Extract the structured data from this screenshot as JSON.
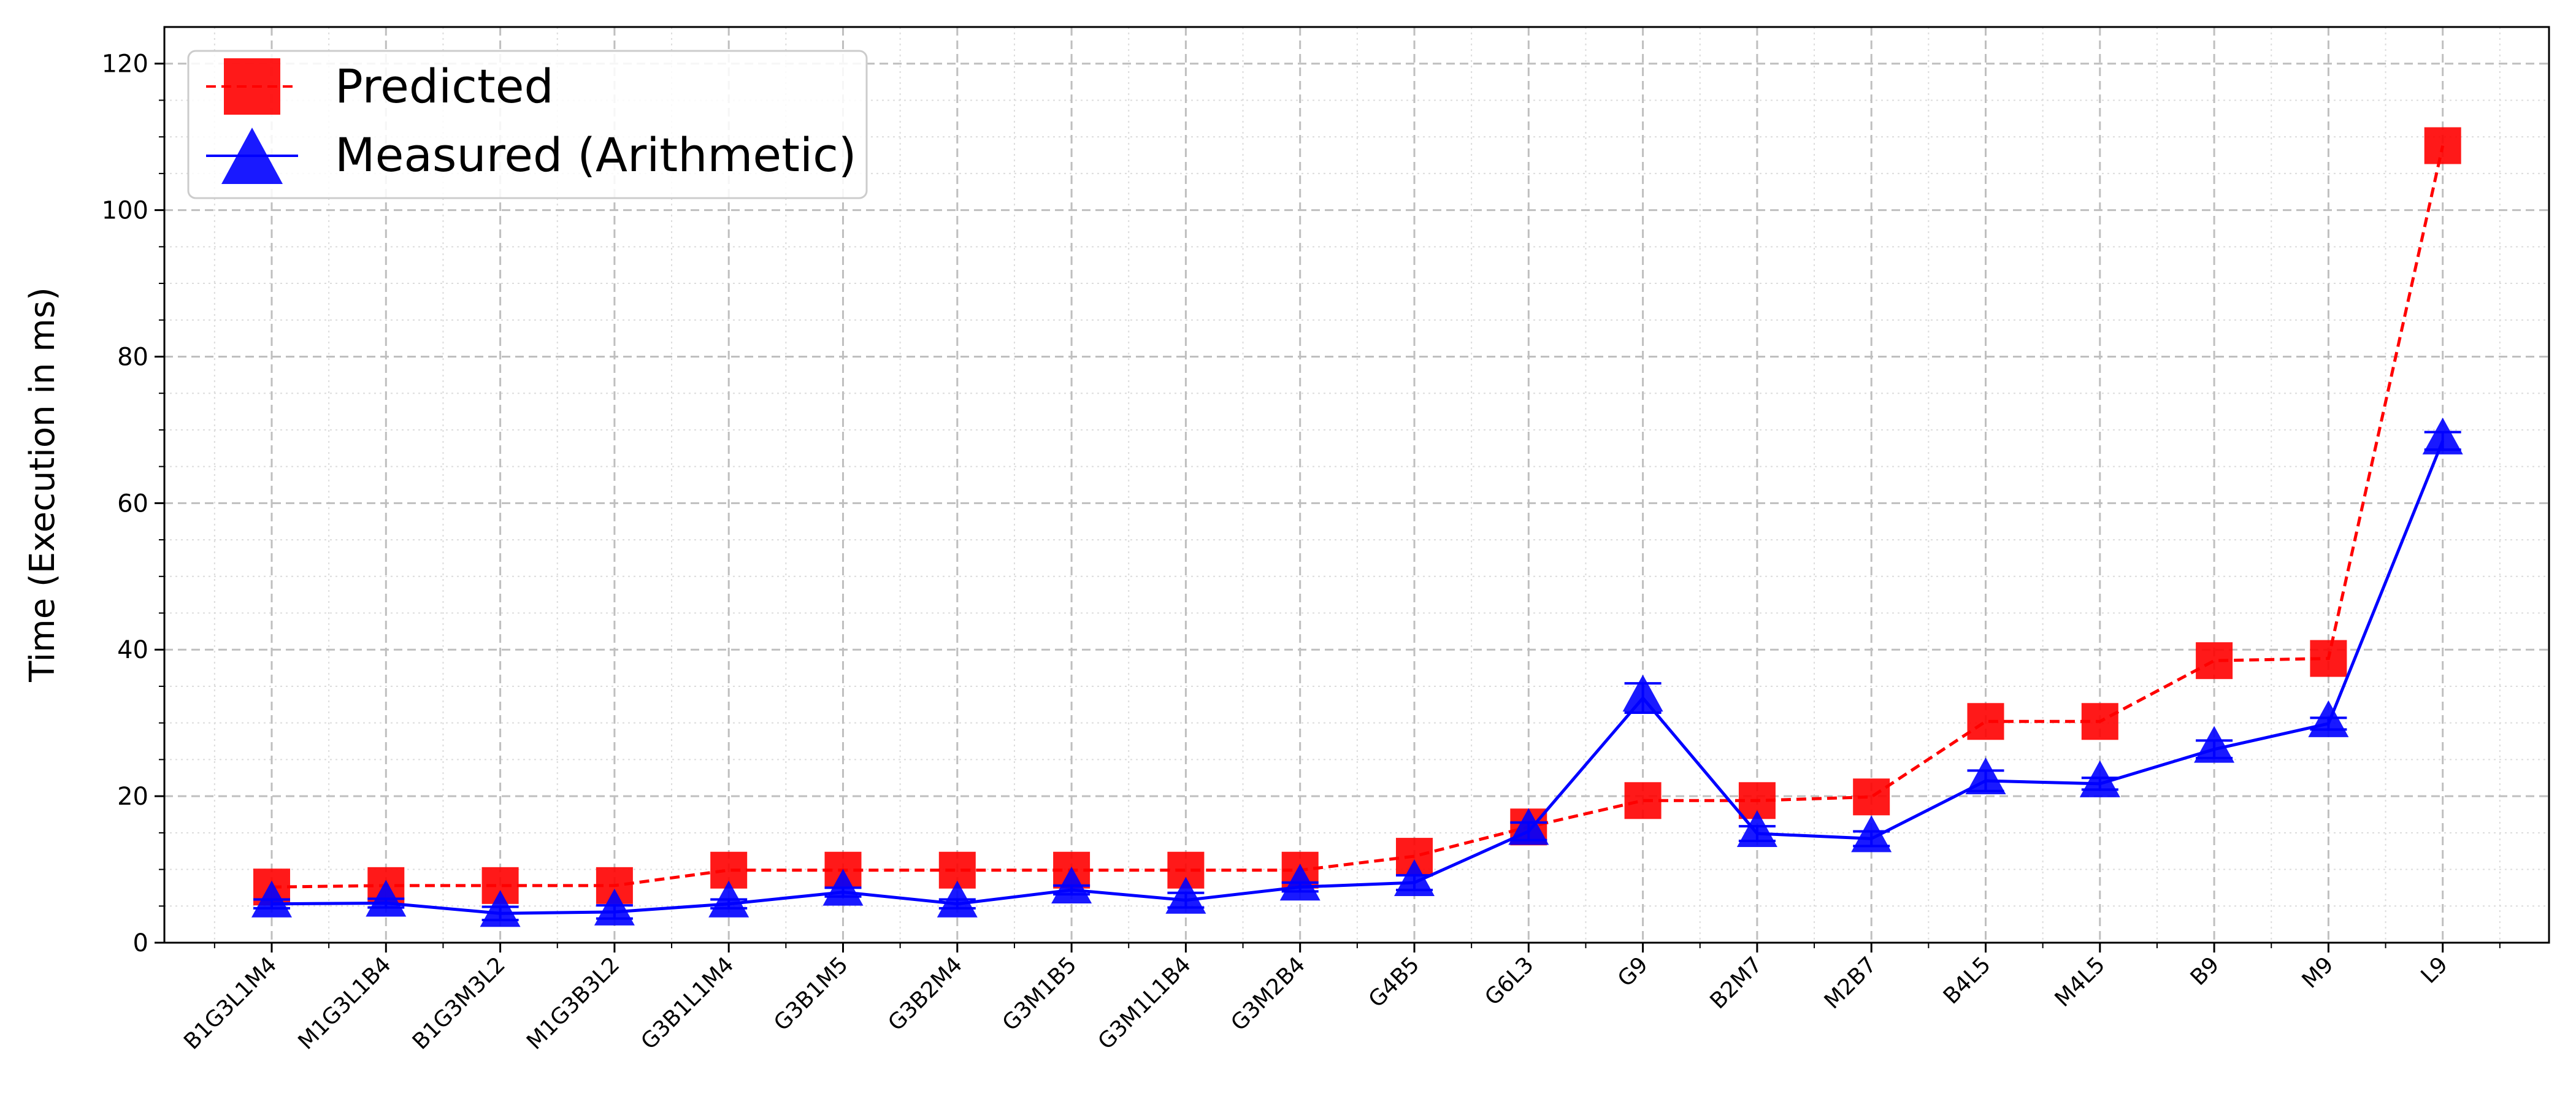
{
  "chart_data": {
    "type": "line",
    "title": "",
    "xlabel": "",
    "ylabel": "Time (Execution in ms)",
    "ylim": [
      0,
      125
    ],
    "yticks": [
      0,
      20,
      40,
      60,
      80,
      100,
      120
    ],
    "grid": true,
    "legend_position": "top-left",
    "categories": [
      "B1G3L1M4",
      "M1G3L1B4",
      "B1G3M3L2",
      "M1G3B3L2",
      "G3B1L1M4",
      "G3B1M5",
      "G3B2M4",
      "G3M1B5",
      "G3M1L1B4",
      "G3M2B4",
      "G4B5",
      "G6L3",
      "G9",
      "B2M7",
      "M2B7",
      "B4L5",
      "M4L5",
      "B9",
      "M9",
      "L9"
    ],
    "series": [
      {
        "name": "Predicted",
        "color": "#ff0000",
        "line_style": "dashed",
        "marker": "square",
        "values": [
          7.6,
          7.8,
          7.8,
          7.8,
          9.9,
          9.9,
          9.9,
          9.9,
          9.9,
          9.9,
          11.8,
          15.8,
          19.4,
          19.4,
          19.9,
          30.2,
          30.2,
          38.5,
          38.8,
          108.8
        ]
      },
      {
        "name": "Measured (Arithmetic)",
        "color": "#0000ff",
        "line_style": "solid",
        "marker": "triangle",
        "values": [
          5.3,
          5.4,
          4.0,
          4.2,
          5.3,
          6.9,
          5.3,
          7.2,
          5.8,
          7.6,
          8.2,
          15.2,
          33.4,
          14.9,
          14.2,
          22.1,
          21.7,
          26.4,
          29.9,
          68.5
        ],
        "errors": [
          0.6,
          0.6,
          0.9,
          0.9,
          0.6,
          0.6,
          0.6,
          0.6,
          1.0,
          0.6,
          1.0,
          1.2,
          2.0,
          1.0,
          1.0,
          1.4,
          0.8,
          1.2,
          0.8,
          1.2
        ]
      }
    ]
  }
}
